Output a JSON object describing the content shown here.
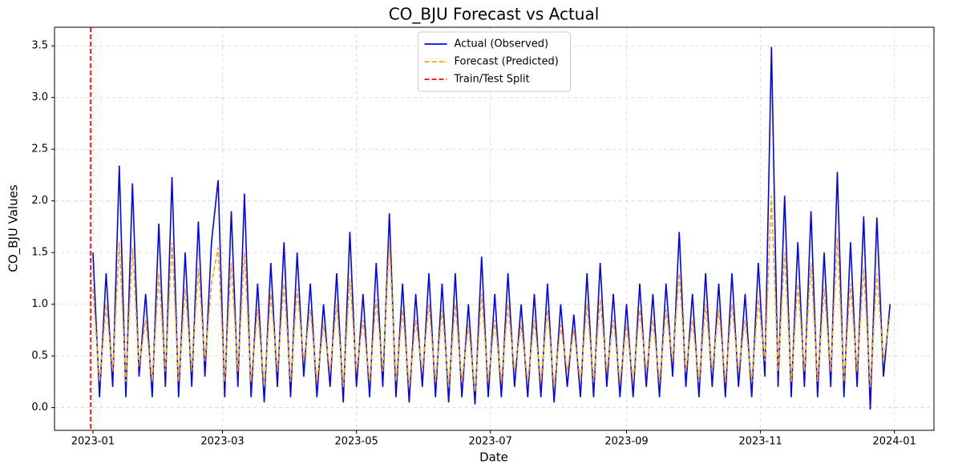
{
  "chart_data": {
    "type": "line",
    "title": "CO_BJU Forecast vs Actual",
    "xlabel": "Date",
    "ylabel": "CO_BJU Values",
    "xlim": [
      -17.5,
      383
    ],
    "xticks": [
      {
        "value": 0,
        "label": "2023-01"
      },
      {
        "value": 59,
        "label": "2023-03"
      },
      {
        "value": 120,
        "label": "2023-05"
      },
      {
        "value": 181,
        "label": "2023-07"
      },
      {
        "value": 243,
        "label": "2023-09"
      },
      {
        "value": 304,
        "label": "2023-11"
      },
      {
        "value": 365,
        "label": "2024-01"
      }
    ],
    "ylim": [
      -0.22,
      3.68
    ],
    "yticks": [
      {
        "value": 0,
        "label": "0.0"
      },
      0.5,
      {
        "value": 1,
        "label": "1.0"
      },
      1.5,
      {
        "value": 2,
        "label": "2.0"
      },
      2.5,
      {
        "value": 3,
        "label": "3.0"
      },
      3.5
    ],
    "grid": true,
    "legend": "upper center",
    "x": [
      0,
      3,
      6,
      9,
      12,
      15,
      18,
      21,
      24,
      27,
      30,
      33,
      36,
      39,
      42,
      45,
      48,
      51,
      54,
      57,
      60,
      63,
      66,
      69,
      72,
      75,
      78,
      81,
      84,
      87,
      90,
      93,
      96,
      99,
      102,
      105,
      108,
      111,
      114,
      117,
      120,
      123,
      126,
      129,
      132,
      135,
      138,
      141,
      144,
      147,
      150,
      153,
      156,
      159,
      162,
      165,
      168,
      171,
      174,
      177,
      180,
      183,
      186,
      189,
      192,
      195,
      198,
      201,
      204,
      207,
      210,
      213,
      216,
      219,
      222,
      225,
      228,
      231,
      234,
      237,
      240,
      243,
      246,
      249,
      252,
      255,
      258,
      261,
      264,
      267,
      270,
      273,
      276,
      279,
      282,
      285,
      288,
      291,
      294,
      297,
      300,
      303,
      306,
      309,
      312,
      315,
      318,
      321,
      324,
      327,
      330,
      333,
      336,
      339,
      342,
      345,
      348,
      351,
      354,
      357,
      360,
      363
    ],
    "series": [
      {
        "name": "Actual (Observed)",
        "color": "#0000ff",
        "style": "solid",
        "values": [
          1.5,
          0.1,
          1.3,
          0.2,
          2.34,
          0.1,
          2.17,
          0.3,
          1.1,
          0.1,
          1.78,
          0.2,
          2.23,
          0.1,
          1.5,
          0.2,
          1.8,
          0.3,
          1.6,
          2.2,
          0.1,
          1.9,
          0.2,
          2.07,
          0.1,
          1.2,
          0.05,
          1.4,
          0.2,
          1.6,
          0.1,
          1.5,
          0.3,
          1.2,
          0.1,
          1.0,
          0.2,
          1.3,
          0.05,
          1.7,
          0.2,
          1.1,
          0.1,
          1.4,
          0.2,
          1.88,
          0.1,
          1.2,
          0.05,
          1.1,
          0.2,
          1.3,
          0.1,
          1.2,
          0.05,
          1.3,
          0.1,
          1.0,
          0.03,
          1.46,
          0.1,
          1.1,
          0.1,
          1.3,
          0.2,
          1.0,
          0.1,
          1.1,
          0.1,
          1.2,
          0.05,
          1.0,
          0.2,
          0.9,
          0.1,
          1.3,
          0.1,
          1.4,
          0.2,
          1.1,
          0.1,
          1.0,
          0.1,
          1.2,
          0.2,
          1.1,
          0.1,
          1.2,
          0.3,
          1.7,
          0.2,
          1.1,
          0.1,
          1.3,
          0.2,
          1.2,
          0.1,
          1.3,
          0.2,
          1.1,
          0.1,
          1.4,
          0.3,
          3.49,
          0.2,
          2.05,
          0.1,
          1.6,
          0.2,
          1.9,
          0.1,
          1.5,
          0.2,
          2.28,
          0.1,
          1.6,
          0.2,
          1.85,
          -0.02,
          1.84,
          0.3,
          1.0
        ]
      },
      {
        "name": "Forecast (Predicted)",
        "color": "#ffa500",
        "style": "dashed",
        "values": [
          1.15,
          0.25,
          1.0,
          0.35,
          1.6,
          0.25,
          1.55,
          0.4,
          0.85,
          0.25,
          1.3,
          0.35,
          1.6,
          0.25,
          1.15,
          0.35,
          1.35,
          0.45,
          1.2,
          1.55,
          0.25,
          1.4,
          0.35,
          1.5,
          0.25,
          0.95,
          0.2,
          1.1,
          0.35,
          1.2,
          0.25,
          1.15,
          0.45,
          0.95,
          0.25,
          0.8,
          0.35,
          1.0,
          0.2,
          1.25,
          0.35,
          0.85,
          0.25,
          1.05,
          0.35,
          1.6,
          0.25,
          0.95,
          0.2,
          0.85,
          0.35,
          1.0,
          0.25,
          0.95,
          0.2,
          1.0,
          0.25,
          0.8,
          0.15,
          1.1,
          0.25,
          0.85,
          0.25,
          1.0,
          0.35,
          0.8,
          0.25,
          0.85,
          0.25,
          0.95,
          0.2,
          0.8,
          0.35,
          0.75,
          0.25,
          1.0,
          0.25,
          1.05,
          0.35,
          0.85,
          0.25,
          0.8,
          0.25,
          0.95,
          0.35,
          0.85,
          0.25,
          0.95,
          0.45,
          1.3,
          0.35,
          0.85,
          0.25,
          1.0,
          0.35,
          0.95,
          0.25,
          1.0,
          0.35,
          0.85,
          0.25,
          1.05,
          0.45,
          2.05,
          0.35,
          1.5,
          0.25,
          1.2,
          0.35,
          1.4,
          0.25,
          1.15,
          0.35,
          1.65,
          0.25,
          1.2,
          0.35,
          1.35,
          0.2,
          1.3,
          0.45,
          0.9
        ]
      }
    ],
    "split": {
      "name": "Train/Test Split",
      "x": -1,
      "color": "#ff0000"
    }
  }
}
